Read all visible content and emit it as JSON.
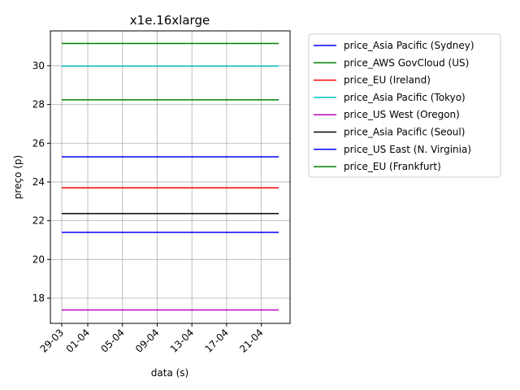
{
  "chart_data": {
    "type": "line",
    "title": "x1e.16xlarge",
    "xlabel": "data (s)",
    "ylabel": "preço (p)",
    "x_ticks": [
      "29-03",
      "01-04",
      "05-04",
      "09-04",
      "13-04",
      "17-04",
      "21-04"
    ],
    "x_range": [
      "29-03",
      "23-04"
    ],
    "y_ticks": [
      18,
      20,
      22,
      24,
      26,
      28,
      30
    ],
    "ylim": [
      16.7,
      31.8
    ],
    "grid": true,
    "legend_position": "outside-right",
    "series": [
      {
        "name": "price_Asia Pacific (Sydney)",
        "color": "#0000ff",
        "x": [
          "29-03",
          "23-04"
        ],
        "y": [
          21.4,
          21.4
        ]
      },
      {
        "name": "price_AWS GovCloud (US)",
        "color": "#008000",
        "x": [
          "29-03",
          "23-04"
        ],
        "y": [
          28.24,
          28.24
        ]
      },
      {
        "name": "price_EU (Ireland)",
        "color": "#ff0000",
        "x": [
          "29-03",
          "23-04"
        ],
        "y": [
          23.7,
          23.7
        ]
      },
      {
        "name": "price_Asia Pacific (Tokyo)",
        "color": "#00bfbf",
        "x": [
          "29-03",
          "23-04"
        ],
        "y": [
          29.98,
          29.98
        ]
      },
      {
        "name": "price_US West (Oregon)",
        "color": "#bf00bf",
        "x": [
          "29-03",
          "23-04"
        ],
        "y": [
          17.39,
          17.39
        ]
      },
      {
        "name": "price_Asia Pacific (Seoul)",
        "color": "#000000",
        "x": [
          "29-03",
          "23-04"
        ],
        "y": [
          22.37,
          22.37
        ]
      },
      {
        "name": "price_US East (N. Virginia)",
        "color": "#0000ff",
        "x": [
          "29-03",
          "23-04"
        ],
        "y": [
          25.3,
          25.3
        ]
      },
      {
        "name": "price_EU (Frankfurt)",
        "color": "#008000",
        "x": [
          "29-03",
          "23-04"
        ],
        "y": [
          31.15,
          31.15
        ]
      }
    ]
  }
}
